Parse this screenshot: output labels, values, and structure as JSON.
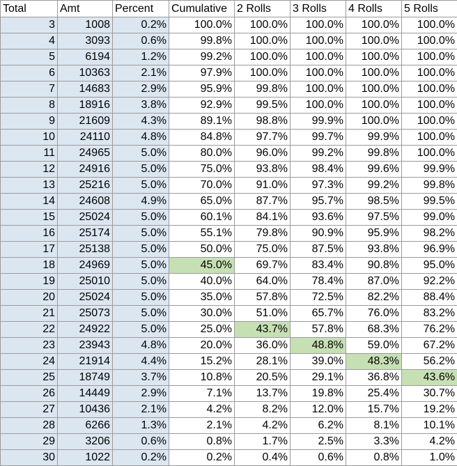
{
  "headers": [
    "Total",
    "Amt",
    "Percent",
    "Cumulative",
    "2 Rolls",
    "3 Rolls",
    "4 Rolls",
    "5 Rolls"
  ],
  "highlight_color": "#c6e0b4",
  "shade_color": "#dce6f1",
  "rows": [
    {
      "total": "3",
      "amt": "1008",
      "percent": "0.2%",
      "cumulative": "100.0%",
      "r2": "100.0%",
      "r3": "100.0%",
      "r4": "100.0%",
      "r5": "100.0%"
    },
    {
      "total": "4",
      "amt": "3093",
      "percent": "0.6%",
      "cumulative": "99.8%",
      "r2": "100.0%",
      "r3": "100.0%",
      "r4": "100.0%",
      "r5": "100.0%"
    },
    {
      "total": "5",
      "amt": "6194",
      "percent": "1.2%",
      "cumulative": "99.2%",
      "r2": "100.0%",
      "r3": "100.0%",
      "r4": "100.0%",
      "r5": "100.0%"
    },
    {
      "total": "6",
      "amt": "10363",
      "percent": "2.1%",
      "cumulative": "97.9%",
      "r2": "100.0%",
      "r3": "100.0%",
      "r4": "100.0%",
      "r5": "100.0%"
    },
    {
      "total": "7",
      "amt": "14683",
      "percent": "2.9%",
      "cumulative": "95.9%",
      "r2": "99.8%",
      "r3": "100.0%",
      "r4": "100.0%",
      "r5": "100.0%"
    },
    {
      "total": "8",
      "amt": "18916",
      "percent": "3.8%",
      "cumulative": "92.9%",
      "r2": "99.5%",
      "r3": "100.0%",
      "r4": "100.0%",
      "r5": "100.0%"
    },
    {
      "total": "9",
      "amt": "21609",
      "percent": "4.3%",
      "cumulative": "89.1%",
      "r2": "98.8%",
      "r3": "99.9%",
      "r4": "100.0%",
      "r5": "100.0%"
    },
    {
      "total": "10",
      "amt": "24110",
      "percent": "4.8%",
      "cumulative": "84.8%",
      "r2": "97.7%",
      "r3": "99.7%",
      "r4": "99.9%",
      "r5": "100.0%"
    },
    {
      "total": "11",
      "amt": "24965",
      "percent": "5.0%",
      "cumulative": "80.0%",
      "r2": "96.0%",
      "r3": "99.2%",
      "r4": "99.8%",
      "r5": "100.0%"
    },
    {
      "total": "12",
      "amt": "24916",
      "percent": "5.0%",
      "cumulative": "75.0%",
      "r2": "93.8%",
      "r3": "98.4%",
      "r4": "99.6%",
      "r5": "99.9%"
    },
    {
      "total": "13",
      "amt": "25216",
      "percent": "5.0%",
      "cumulative": "70.0%",
      "r2": "91.0%",
      "r3": "97.3%",
      "r4": "99.2%",
      "r5": "99.8%"
    },
    {
      "total": "14",
      "amt": "24608",
      "percent": "4.9%",
      "cumulative": "65.0%",
      "r2": "87.7%",
      "r3": "95.7%",
      "r4": "98.5%",
      "r5": "99.5%"
    },
    {
      "total": "15",
      "amt": "25024",
      "percent": "5.0%",
      "cumulative": "60.1%",
      "r2": "84.1%",
      "r3": "93.6%",
      "r4": "97.5%",
      "r5": "99.0%"
    },
    {
      "total": "16",
      "amt": "25174",
      "percent": "5.0%",
      "cumulative": "55.1%",
      "r2": "79.8%",
      "r3": "90.9%",
      "r4": "95.9%",
      "r5": "98.2%"
    },
    {
      "total": "17",
      "amt": "25138",
      "percent": "5.0%",
      "cumulative": "50.0%",
      "r2": "75.0%",
      "r3": "87.5%",
      "r4": "93.8%",
      "r5": "96.9%"
    },
    {
      "total": "18",
      "amt": "24969",
      "percent": "5.0%",
      "cumulative": "45.0%",
      "r2": "69.7%",
      "r3": "83.4%",
      "r4": "90.8%",
      "r5": "95.0%",
      "hl": "cumulative"
    },
    {
      "total": "19",
      "amt": "25010",
      "percent": "5.0%",
      "cumulative": "40.0%",
      "r2": "64.0%",
      "r3": "78.4%",
      "r4": "87.0%",
      "r5": "92.2%"
    },
    {
      "total": "20",
      "amt": "25024",
      "percent": "5.0%",
      "cumulative": "35.0%",
      "r2": "57.8%",
      "r3": "72.5%",
      "r4": "82.2%",
      "r5": "88.4%"
    },
    {
      "total": "21",
      "amt": "25073",
      "percent": "5.0%",
      "cumulative": "30.0%",
      "r2": "51.0%",
      "r3": "65.7%",
      "r4": "76.0%",
      "r5": "83.2%"
    },
    {
      "total": "22",
      "amt": "24922",
      "percent": "5.0%",
      "cumulative": "25.0%",
      "r2": "43.7%",
      "r3": "57.8%",
      "r4": "68.3%",
      "r5": "76.2%",
      "hl": "r2"
    },
    {
      "total": "23",
      "amt": "23943",
      "percent": "4.8%",
      "cumulative": "20.0%",
      "r2": "36.0%",
      "r3": "48.8%",
      "r4": "59.0%",
      "r5": "67.2%",
      "hl": "r3"
    },
    {
      "total": "24",
      "amt": "21914",
      "percent": "4.4%",
      "cumulative": "15.2%",
      "r2": "28.1%",
      "r3": "39.0%",
      "r4": "48.3%",
      "r5": "56.2%",
      "hl": "r4"
    },
    {
      "total": "25",
      "amt": "18749",
      "percent": "3.7%",
      "cumulative": "10.8%",
      "r2": "20.5%",
      "r3": "29.1%",
      "r4": "36.8%",
      "r5": "43.6%",
      "hl": "r5"
    },
    {
      "total": "26",
      "amt": "14449",
      "percent": "2.9%",
      "cumulative": "7.1%",
      "r2": "13.7%",
      "r3": "19.8%",
      "r4": "25.4%",
      "r5": "30.7%"
    },
    {
      "total": "27",
      "amt": "10436",
      "percent": "2.1%",
      "cumulative": "4.2%",
      "r2": "8.2%",
      "r3": "12.0%",
      "r4": "15.7%",
      "r5": "19.2%"
    },
    {
      "total": "28",
      "amt": "6266",
      "percent": "1.3%",
      "cumulative": "2.1%",
      "r2": "4.2%",
      "r3": "6.2%",
      "r4": "8.1%",
      "r5": "10.1%"
    },
    {
      "total": "29",
      "amt": "3206",
      "percent": "0.6%",
      "cumulative": "0.8%",
      "r2": "1.7%",
      "r3": "2.5%",
      "r4": "3.3%",
      "r5": "4.2%"
    },
    {
      "total": "30",
      "amt": "1022",
      "percent": "0.2%",
      "cumulative": "0.2%",
      "r2": "0.4%",
      "r3": "0.6%",
      "r4": "0.8%",
      "r5": "1.0%"
    }
  ]
}
